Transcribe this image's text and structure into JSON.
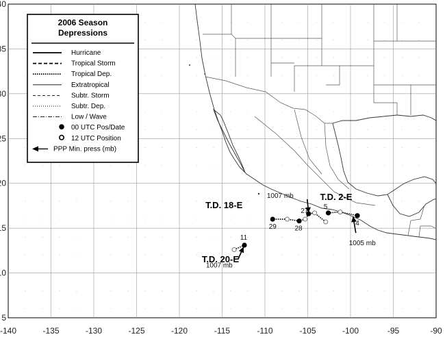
{
  "legend": {
    "title_line1": "2006 Season",
    "title_line2": "Depressions",
    "items": [
      {
        "label": "Hurricane",
        "style": "hurricane"
      },
      {
        "label": "Tropical Storm",
        "style": "tropical-storm"
      },
      {
        "label": "Tropical Dep.",
        "style": "tropical-dep"
      },
      {
        "label": "Extratropical",
        "style": "extratropical"
      },
      {
        "label": "Subtr. Storm",
        "style": "subtr-storm"
      },
      {
        "label": "Subtr. Dep.",
        "style": "subtr-dep"
      },
      {
        "label": "Low / Wave",
        "style": "low-wave"
      },
      {
        "label": "00 UTC Pos/Date",
        "style": "filled-dot"
      },
      {
        "label": "12 UTC Position",
        "style": "open-dot"
      },
      {
        "label": "PPP   Min. press (mb)",
        "style": "arrow"
      }
    ]
  },
  "axes": {
    "lon_ticks": [
      -140,
      -135,
      -130,
      -125,
      -120,
      -115,
      -110,
      -105,
      -100,
      -95,
      -90
    ],
    "lat_ticks": [
      5,
      10,
      15,
      20,
      25,
      30,
      35,
      40
    ],
    "lon_range": [
      -140,
      -90
    ],
    "lat_range": [
      5,
      40
    ],
    "grid": true
  },
  "storms": [
    {
      "name": "T.D. 2-E",
      "pressure_label": "1005 mb",
      "track": [
        {
          "lon": -102.6,
          "lat": 16.7,
          "type": "filled",
          "date": "5"
        },
        {
          "lon": -101.2,
          "lat": 16.8,
          "type": "open"
        },
        {
          "lon": -99.2,
          "lat": 16.4,
          "type": "filled",
          "date": "4"
        }
      ],
      "min_press_point": {
        "lon": -99.7,
        "lat": 16.3
      }
    },
    {
      "name": "T.D. 18-E",
      "pressure_label": "1007 mb",
      "track": [
        {
          "lon": -102.9,
          "lat": 15.7,
          "type": "open"
        },
        {
          "lon": -104.2,
          "lat": 16.7,
          "type": "open"
        },
        {
          "lon": -104.9,
          "lat": 16.6,
          "type": "filled",
          "date": "27"
        },
        {
          "lon": -105.3,
          "lat": 16.0,
          "type": "open"
        },
        {
          "lon": -106.0,
          "lat": 15.8,
          "type": "filled",
          "date": "28"
        },
        {
          "lon": -107.4,
          "lat": 16.0,
          "type": "open"
        },
        {
          "lon": -109.1,
          "lat": 16.0,
          "type": "filled",
          "date": "29"
        }
      ],
      "min_press_point": {
        "lon": -104.9,
        "lat": 16.7
      }
    },
    {
      "name": "T.D. 20-E",
      "pressure_label": "1007 mb",
      "track": [
        {
          "lon": -113.6,
          "lat": 12.6,
          "type": "open"
        },
        {
          "lon": -112.4,
          "lat": 13.1,
          "type": "filled",
          "date": "11"
        }
      ],
      "min_press_point": {
        "lon": -112.5,
        "lat": 12.9
      }
    }
  ]
}
